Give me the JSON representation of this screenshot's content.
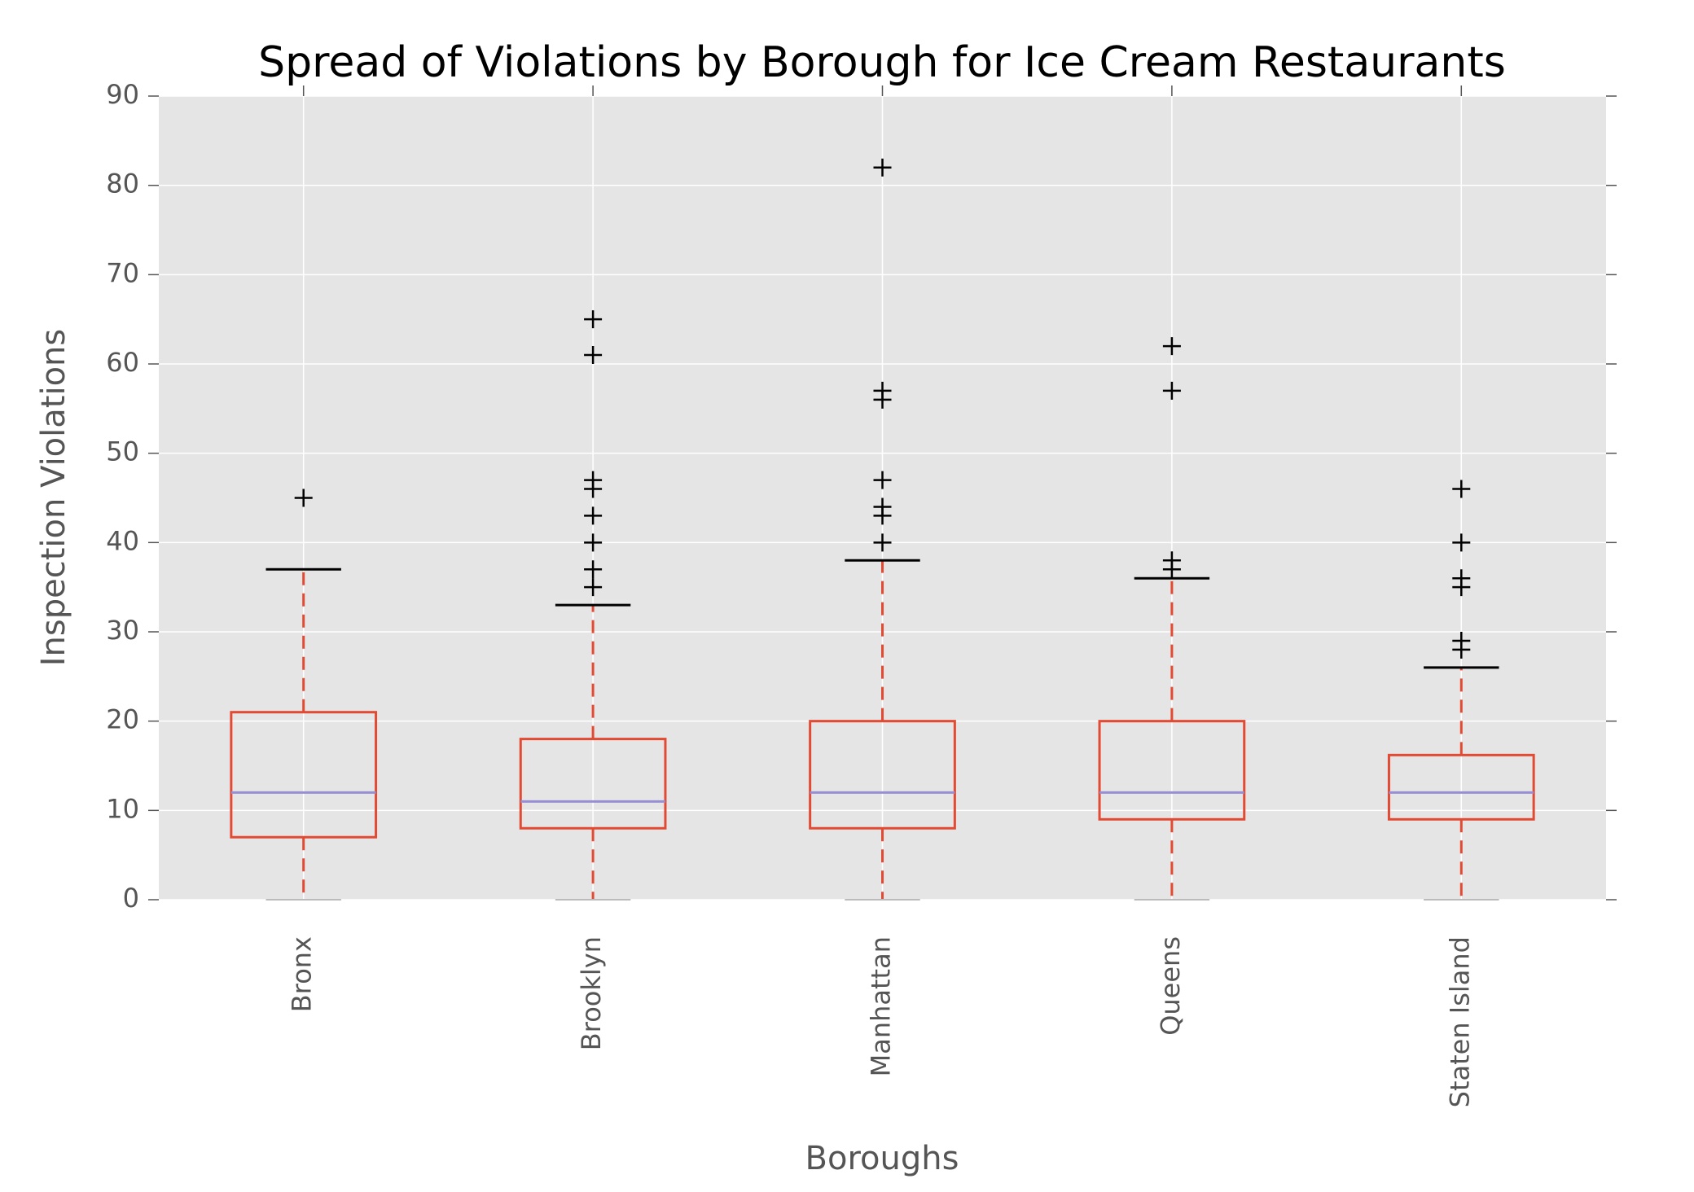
{
  "chart_data": {
    "type": "box",
    "title": "Spread of Violations by Borough for Ice Cream Restaurants",
    "x_label": "Boroughs",
    "y_label": "Inspection Violations",
    "categories": [
      "Bronx",
      "Brooklyn",
      "Manhattan",
      "Queens",
      "Staten Island"
    ],
    "boxes": [
      {
        "whislo": 0,
        "q1": 7,
        "med": 12,
        "q3": 21,
        "whishi": 37,
        "fliers": [
          45
        ]
      },
      {
        "whislo": 0,
        "q1": 8,
        "med": 11,
        "q3": 18,
        "whishi": 33,
        "fliers": [
          35,
          37,
          40,
          43,
          46,
          47,
          61,
          65
        ]
      },
      {
        "whislo": 0,
        "q1": 8,
        "med": 12,
        "q3": 20,
        "whishi": 38,
        "fliers": [
          40,
          43,
          44,
          47,
          56,
          57,
          82
        ]
      },
      {
        "whislo": 0,
        "q1": 9,
        "med": 12,
        "q3": 20,
        "whishi": 36,
        "fliers": [
          37,
          38,
          57,
          62
        ]
      },
      {
        "whislo": 0,
        "q1": 9,
        "med": 12,
        "q3": 16.2,
        "whishi": 26,
        "fliers": [
          28,
          29,
          35,
          36,
          40,
          46
        ]
      }
    ],
    "box_color": "#e24a33",
    "median_color": "#988ed5",
    "flier_color": "#000000",
    "ylim": [
      0,
      90
    ],
    "yticks": [
      0,
      10,
      20,
      30,
      40,
      50,
      60,
      70,
      80,
      90
    ],
    "grid": true
  }
}
